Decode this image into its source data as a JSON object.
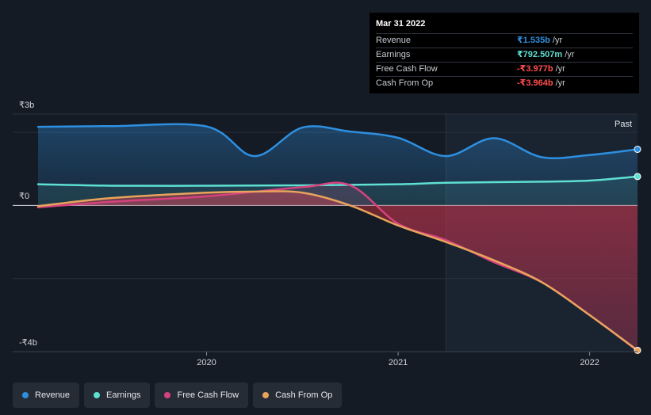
{
  "tooltip": {
    "date": "Mar 31 2022",
    "rows": [
      {
        "label": "Revenue",
        "value": "₹1.535b",
        "unit": "/yr",
        "color": "#2e8fe0"
      },
      {
        "label": "Earnings",
        "value": "₹792.507m",
        "unit": "/yr",
        "color": "#5ee0d2"
      },
      {
        "label": "Free Cash Flow",
        "value": "-₹3.977b",
        "unit": "/yr",
        "color": "#ff4d4d"
      },
      {
        "label": "Cash From Op",
        "value": "-₹3.964b",
        "unit": "/yr",
        "color": "#ff4d4d"
      }
    ]
  },
  "legend": [
    {
      "label": "Revenue",
      "color": "#2e8fe0"
    },
    {
      "label": "Earnings",
      "color": "#5ee0d2"
    },
    {
      "label": "Free Cash Flow",
      "color": "#d6427e"
    },
    {
      "label": "Cash From Op",
      "color": "#e8a45c"
    }
  ],
  "chart_data": {
    "type": "line",
    "title": "",
    "xlabel": "",
    "ylabel": "",
    "ylim": [
      -4,
      2.5
    ],
    "y_tick_labels": [
      {
        "value": 2.5,
        "label": "₹3b"
      },
      {
        "value": 0,
        "label": "₹0"
      },
      {
        "value": -4,
        "label": "-₹4b"
      }
    ],
    "x_tick_labels": [
      {
        "value": 2020,
        "label": "2020"
      },
      {
        "value": 2021,
        "label": "2021"
      },
      {
        "value": 2022,
        "label": "2022"
      }
    ],
    "xlim": [
      2019.12,
      2022.25
    ],
    "past_label": "Past",
    "past_start": 2021.25,
    "series": [
      {
        "name": "Revenue",
        "color": "#2e8fe0",
        "x": [
          2019.12,
          2019.5,
          2020.0,
          2020.25,
          2020.5,
          2020.75,
          2021.0,
          2021.25,
          2021.5,
          2021.75,
          2022.0,
          2022.25
        ],
        "values": [
          2.15,
          2.17,
          2.16,
          1.35,
          2.13,
          2.02,
          1.85,
          1.35,
          1.84,
          1.32,
          1.38,
          1.535
        ]
      },
      {
        "name": "Earnings",
        "color": "#5ee0d2",
        "x": [
          2019.12,
          2019.5,
          2020.0,
          2020.5,
          2021.0,
          2021.25,
          2021.75,
          2022.0,
          2022.25
        ],
        "values": [
          0.58,
          0.54,
          0.54,
          0.55,
          0.58,
          0.62,
          0.65,
          0.68,
          0.79
        ]
      },
      {
        "name": "Free Cash Flow",
        "color": "#d6427e",
        "x": [
          2019.12,
          2019.5,
          2020.0,
          2020.5,
          2020.75,
          2021.0,
          2021.25,
          2021.5,
          2021.75,
          2022.0,
          2022.25
        ],
        "values": [
          -0.05,
          0.1,
          0.25,
          0.5,
          0.55,
          -0.5,
          -0.95,
          -1.55,
          -2.1,
          -3.0,
          -3.977
        ]
      },
      {
        "name": "Cash From Op",
        "color": "#e8a45c",
        "x": [
          2019.12,
          2019.5,
          2020.0,
          2020.25,
          2020.5,
          2020.75,
          2021.0,
          2021.25,
          2021.5,
          2021.75,
          2022.0,
          2022.25
        ],
        "values": [
          -0.02,
          0.2,
          0.35,
          0.38,
          0.35,
          0.0,
          -0.55,
          -1.0,
          -1.5,
          -2.1,
          -3.0,
          -3.964
        ]
      }
    ]
  }
}
